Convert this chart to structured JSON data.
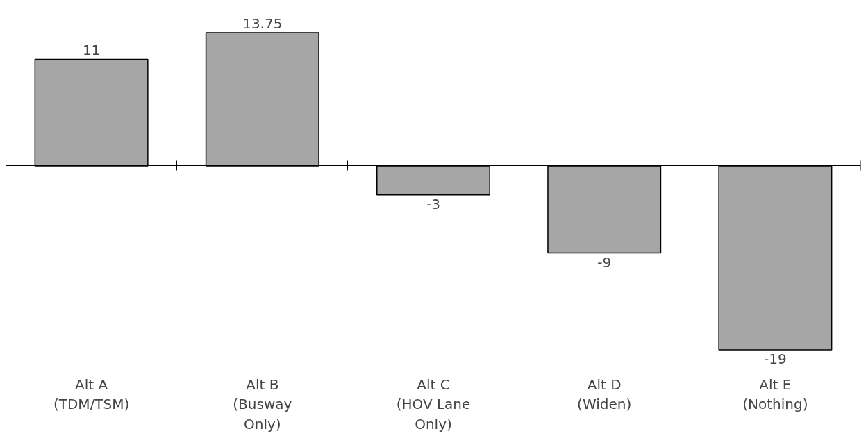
{
  "chart_data": {
    "type": "bar",
    "categories": [
      "Alt A\n(TDM/TSM)",
      "Alt B\n(Busway\nOnly)",
      "Alt C\n(HOV Lane\nOnly)",
      "Alt D\n(Widen)",
      "Alt E\n(Nothing)"
    ],
    "values": [
      11,
      13.75,
      -3,
      -9,
      -19
    ],
    "color": "#a6a6a6",
    "data_labels": true
  }
}
